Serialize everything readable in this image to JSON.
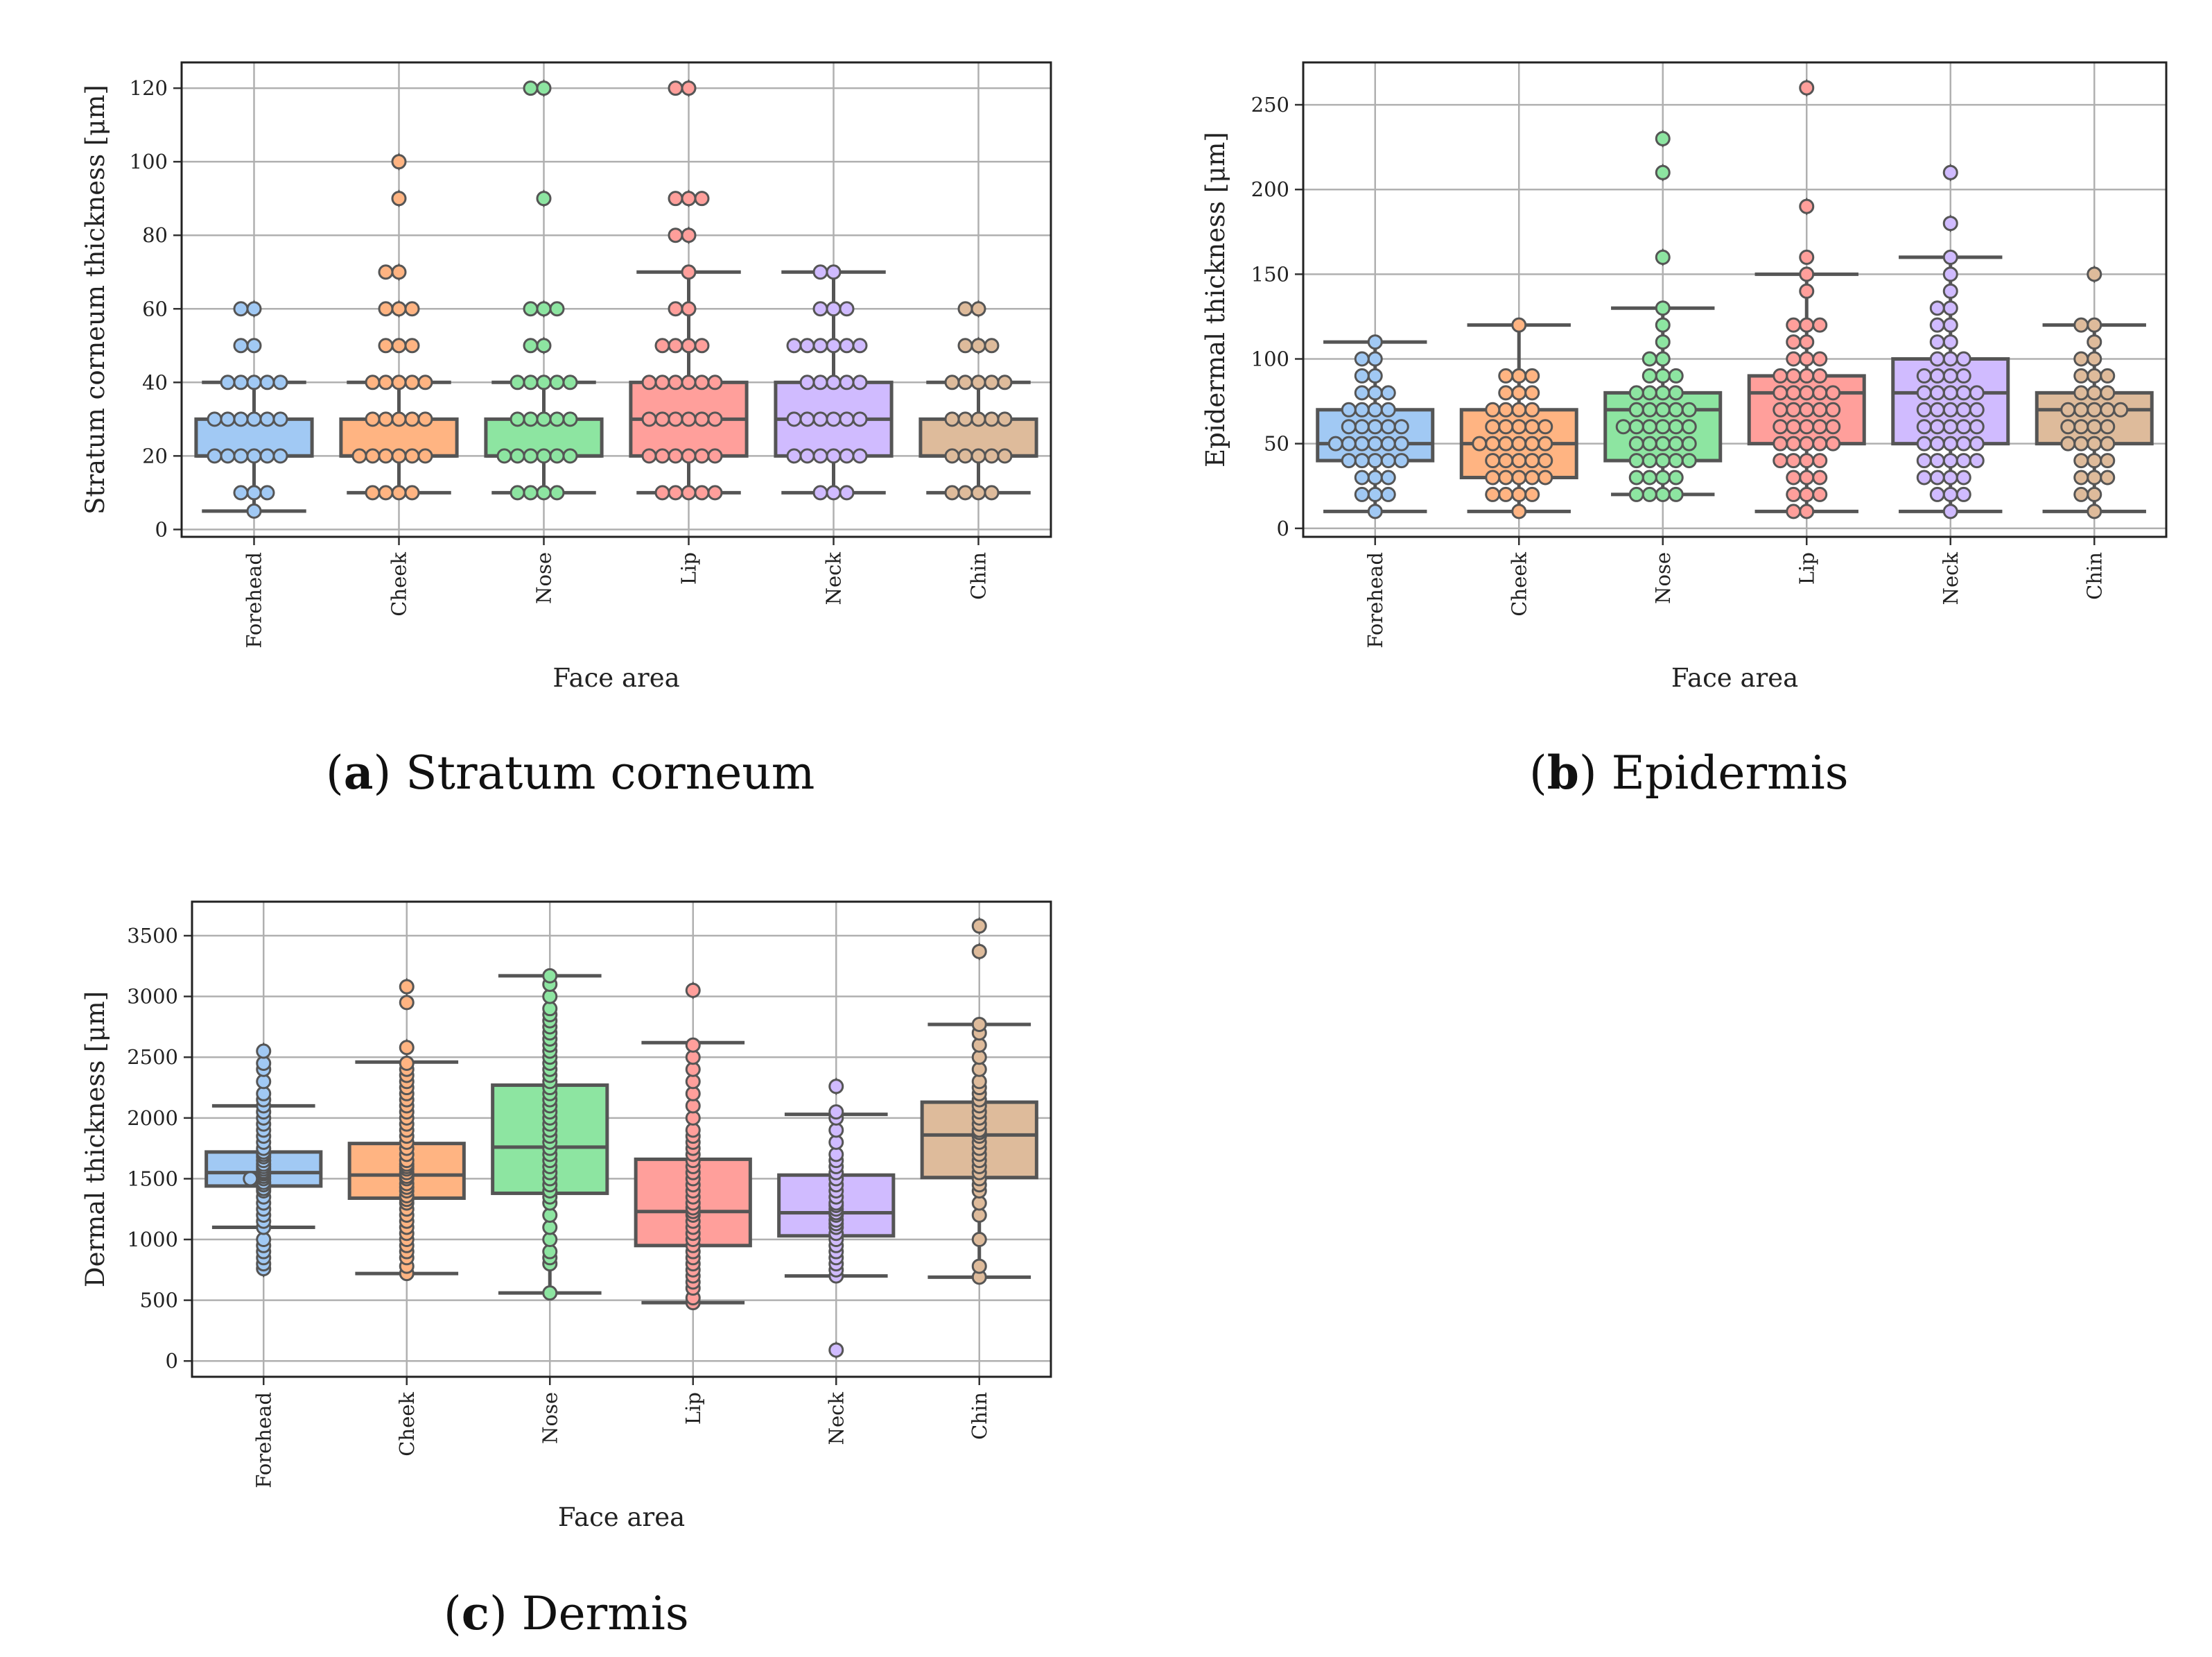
{
  "panels": [
    {
      "id": "a",
      "caption_letter": "a",
      "caption_text": "Stratum corneum",
      "xlabel": "Face area",
      "ylabel": "Stratum corneum thickness [μm]"
    },
    {
      "id": "b",
      "caption_letter": "b",
      "caption_text": "Epidermis",
      "xlabel": "Face area",
      "ylabel": "Epidermal thickness [μm]"
    },
    {
      "id": "c",
      "caption_letter": "c",
      "caption_text": "Dermis",
      "xlabel": "Face area",
      "ylabel": "Dermal thickness [μm]"
    }
  ],
  "colors": {
    "Forehead": "#a1c9f4",
    "Cheek": "#ffb482",
    "Nose": "#8de5a1",
    "Lip": "#ff9f9b",
    "Neck": "#d0bbff",
    "Chin": "#debb9b",
    "edge": "#555555",
    "grid": "#b0b0b0"
  },
  "chart_data": [
    {
      "type": "box",
      "title": "Stratum corneum",
      "xlabel": "Face area",
      "ylabel": "Stratum corneum thickness [μm]",
      "categories": [
        "Forehead",
        "Cheek",
        "Nose",
        "Lip",
        "Neck",
        "Chin"
      ],
      "ylim": [
        -2,
        127
      ],
      "yticks": [
        0,
        20,
        40,
        60,
        80,
        100,
        120
      ],
      "grid": true,
      "boxes": [
        {
          "name": "Forehead",
          "whislo": 5,
          "q1": 20,
          "median": 20,
          "q3": 30,
          "whishi": 40,
          "fliers": [
            60
          ]
        },
        {
          "name": "Cheek",
          "whislo": 10,
          "q1": 20,
          "median": 20,
          "q3": 30,
          "whishi": 40,
          "fliers": [
            60,
            70,
            90,
            100
          ]
        },
        {
          "name": "Nose",
          "whislo": 10,
          "q1": 20,
          "median": 20,
          "q3": 30,
          "whishi": 40,
          "fliers": [
            50,
            60,
            90,
            120
          ]
        },
        {
          "name": "Lip",
          "whislo": 10,
          "q1": 20,
          "median": 30,
          "q3": 40,
          "whishi": 70,
          "fliers": [
            80,
            90,
            120
          ]
        },
        {
          "name": "Neck",
          "whislo": 10,
          "q1": 20,
          "median": 30,
          "q3": 40,
          "whishi": 70,
          "fliers": []
        },
        {
          "name": "Chin",
          "whislo": 10,
          "q1": 20,
          "median": 20,
          "q3": 30,
          "whishi": 40,
          "fliers": [
            50,
            60
          ]
        }
      ],
      "points": {
        "Forehead": [
          5,
          10,
          10,
          10,
          20,
          20,
          20,
          20,
          20,
          20,
          30,
          30,
          30,
          30,
          30,
          30,
          40,
          40,
          40,
          40,
          40,
          50,
          50,
          60,
          60
        ],
        "Cheek": [
          10,
          10,
          10,
          10,
          20,
          20,
          20,
          20,
          20,
          20,
          30,
          30,
          30,
          30,
          30,
          40,
          40,
          40,
          40,
          40,
          50,
          50,
          50,
          60,
          60,
          60,
          70,
          70,
          90,
          100
        ],
        "Nose": [
          10,
          10,
          10,
          10,
          20,
          20,
          20,
          20,
          20,
          20,
          30,
          30,
          30,
          30,
          30,
          40,
          40,
          40,
          40,
          40,
          50,
          50,
          60,
          60,
          60,
          90,
          120,
          120
        ],
        "Lip": [
          10,
          10,
          10,
          10,
          10,
          20,
          20,
          20,
          20,
          20,
          20,
          30,
          30,
          30,
          30,
          30,
          30,
          40,
          40,
          40,
          40,
          40,
          40,
          50,
          50,
          50,
          50,
          60,
          60,
          70,
          80,
          80,
          90,
          90,
          90,
          120,
          120
        ],
        "Neck": [
          10,
          10,
          10,
          20,
          20,
          20,
          20,
          20,
          20,
          30,
          30,
          30,
          30,
          30,
          30,
          40,
          40,
          40,
          40,
          40,
          50,
          50,
          50,
          50,
          50,
          50,
          60,
          60,
          60,
          70,
          70
        ],
        "Chin": [
          10,
          10,
          10,
          10,
          20,
          20,
          20,
          20,
          20,
          30,
          30,
          30,
          30,
          30,
          40,
          40,
          40,
          40,
          40,
          50,
          50,
          50,
          60,
          60
        ]
      }
    },
    {
      "type": "box",
      "title": "Epidermis",
      "xlabel": "Face area",
      "ylabel": "Epidermal thickness [μm]",
      "categories": [
        "Forehead",
        "Cheek",
        "Nose",
        "Lip",
        "Neck",
        "Chin"
      ],
      "ylim": [
        -5,
        275
      ],
      "yticks": [
        0,
        50,
        100,
        150,
        200,
        250
      ],
      "grid": true,
      "boxes": [
        {
          "name": "Forehead",
          "whislo": 10,
          "q1": 40,
          "median": 50,
          "q3": 70,
          "whishi": 110,
          "fliers": []
        },
        {
          "name": "Cheek",
          "whislo": 10,
          "q1": 30,
          "median": 50,
          "q3": 70,
          "whishi": 120,
          "fliers": []
        },
        {
          "name": "Nose",
          "whislo": 20,
          "q1": 40,
          "median": 70,
          "q3": 80,
          "whishi": 130,
          "fliers": [
            160,
            210,
            230
          ]
        },
        {
          "name": "Lip",
          "whislo": 10,
          "q1": 50,
          "median": 80,
          "q3": 90,
          "whishi": 150,
          "fliers": [
            190,
            260
          ]
        },
        {
          "name": "Neck",
          "whislo": 10,
          "q1": 50,
          "median": 80,
          "q3": 100,
          "whishi": 160,
          "fliers": [
            180,
            210
          ]
        },
        {
          "name": "Chin",
          "whislo": 10,
          "q1": 50,
          "median": 70,
          "q3": 80,
          "whishi": 120,
          "fliers": [
            150
          ]
        }
      ],
      "points": {
        "Forehead": [
          10,
          20,
          20,
          20,
          30,
          30,
          30,
          40,
          40,
          40,
          40,
          40,
          50,
          50,
          50,
          50,
          50,
          50,
          60,
          60,
          60,
          60,
          60,
          70,
          70,
          70,
          70,
          80,
          80,
          80,
          90,
          90,
          100,
          100,
          110
        ],
        "Cheek": [
          10,
          20,
          20,
          20,
          20,
          30,
          30,
          30,
          30,
          30,
          40,
          40,
          40,
          40,
          40,
          50,
          50,
          50,
          50,
          50,
          50,
          60,
          60,
          60,
          60,
          60,
          70,
          70,
          70,
          70,
          80,
          80,
          80,
          90,
          90,
          90,
          120
        ],
        "Nose": [
          20,
          20,
          20,
          20,
          30,
          30,
          30,
          30,
          40,
          40,
          40,
          40,
          40,
          50,
          50,
          50,
          50,
          50,
          60,
          60,
          60,
          60,
          60,
          60,
          70,
          70,
          70,
          70,
          70,
          80,
          80,
          80,
          80,
          90,
          90,
          90,
          100,
          100,
          110,
          120,
          130,
          160,
          210,
          230
        ],
        "Lip": [
          10,
          10,
          20,
          20,
          20,
          30,
          30,
          30,
          40,
          40,
          40,
          40,
          50,
          50,
          50,
          50,
          50,
          60,
          60,
          60,
          60,
          60,
          70,
          70,
          70,
          70,
          70,
          80,
          80,
          80,
          80,
          80,
          90,
          90,
          90,
          90,
          100,
          100,
          100,
          110,
          110,
          120,
          120,
          120,
          140,
          150,
          160,
          190,
          260
        ],
        "Neck": [
          10,
          20,
          20,
          20,
          30,
          30,
          30,
          30,
          40,
          40,
          40,
          40,
          40,
          50,
          50,
          50,
          50,
          50,
          60,
          60,
          60,
          60,
          60,
          70,
          70,
          70,
          70,
          70,
          80,
          80,
          80,
          80,
          80,
          90,
          90,
          90,
          90,
          100,
          100,
          100,
          110,
          110,
          120,
          120,
          130,
          130,
          140,
          150,
          160,
          180,
          210
        ],
        "Chin": [
          10,
          20,
          20,
          30,
          30,
          30,
          40,
          40,
          40,
          50,
          50,
          50,
          50,
          60,
          60,
          60,
          60,
          70,
          70,
          70,
          70,
          70,
          80,
          80,
          80,
          90,
          90,
          90,
          100,
          100,
          110,
          120,
          120,
          150
        ]
      }
    },
    {
      "type": "box",
      "title": "Dermis",
      "xlabel": "Face area",
      "ylabel": "Dermal thickness [μm]",
      "categories": [
        "Forehead",
        "Cheek",
        "Nose",
        "Lip",
        "Neck",
        "Chin"
      ],
      "ylim": [
        -130,
        3780
      ],
      "yticks": [
        0,
        500,
        1000,
        1500,
        2000,
        2500,
        3000,
        3500
      ],
      "grid": true,
      "boxes": [
        {
          "name": "Forehead",
          "whislo": 1100,
          "q1": 1440,
          "median": 1550,
          "q3": 1720,
          "whishi": 2100,
          "fliers": [
            760,
            850,
            2400,
            2550
          ]
        },
        {
          "name": "Cheek",
          "whislo": 720,
          "q1": 1340,
          "median": 1530,
          "q3": 1790,
          "whishi": 2460,
          "fliers": [
            2580,
            3080
          ]
        },
        {
          "name": "Nose",
          "whislo": 560,
          "q1": 1380,
          "median": 1760,
          "q3": 2270,
          "whishi": 3170,
          "fliers": []
        },
        {
          "name": "Lip",
          "whislo": 480,
          "q1": 950,
          "median": 1230,
          "q3": 1660,
          "whishi": 2620,
          "fliers": [
            3050
          ]
        },
        {
          "name": "Neck",
          "whislo": 700,
          "q1": 1030,
          "median": 1220,
          "q3": 1530,
          "whishi": 2030,
          "fliers": [
            90,
            2260
          ]
        },
        {
          "name": "Chin",
          "whislo": 690,
          "q1": 1510,
          "median": 1860,
          "q3": 2130,
          "whishi": 2770,
          "fliers": [
            3370,
            3580
          ]
        }
      ],
      "points": {
        "Forehead": [
          760,
          800,
          850,
          900,
          950,
          1000,
          1100,
          1150,
          1200,
          1250,
          1300,
          1350,
          1400,
          1420,
          1450,
          1470,
          1500,
          1500,
          1520,
          1540,
          1550,
          1560,
          1580,
          1600,
          1620,
          1650,
          1680,
          1700,
          1720,
          1750,
          1800,
          1850,
          1900,
          1950,
          2000,
          2050,
          2100,
          2150,
          2200,
          2300,
          2400,
          2450,
          2550
        ],
        "Cheek": [
          720,
          780,
          850,
          900,
          950,
          1000,
          1050,
          1100,
          1150,
          1200,
          1250,
          1300,
          1330,
          1360,
          1400,
          1430,
          1460,
          1500,
          1520,
          1550,
          1580,
          1600,
          1620,
          1650,
          1700,
          1750,
          1800,
          1850,
          1900,
          1950,
          2000,
          2050,
          2100,
          2150,
          2200,
          2250,
          2300,
          2350,
          2400,
          2450,
          2580,
          2950,
          3080
        ],
        "Nose": [
          560,
          800,
          850,
          900,
          1000,
          1100,
          1200,
          1300,
          1350,
          1400,
          1450,
          1500,
          1550,
          1600,
          1650,
          1700,
          1750,
          1800,
          1850,
          1900,
          1950,
          2000,
          2050,
          2100,
          2150,
          2200,
          2250,
          2300,
          2350,
          2400,
          2450,
          2500,
          2550,
          2600,
          2650,
          2700,
          2750,
          2800,
          2850,
          2900,
          3000,
          3100,
          3170
        ],
        "Lip": [
          480,
          520,
          600,
          650,
          700,
          750,
          800,
          850,
          900,
          950,
          1000,
          1050,
          1100,
          1150,
          1200,
          1230,
          1260,
          1300,
          1350,
          1400,
          1450,
          1500,
          1550,
          1600,
          1650,
          1700,
          1750,
          1800,
          1850,
          1900,
          2000,
          2100,
          2200,
          2300,
          2400,
          2500,
          2600,
          3050
        ],
        "Neck": [
          90,
          700,
          750,
          800,
          850,
          900,
          950,
          1000,
          1050,
          1100,
          1130,
          1160,
          1200,
          1220,
          1250,
          1280,
          1300,
          1350,
          1400,
          1450,
          1500,
          1550,
          1600,
          1650,
          1700,
          1800,
          1900,
          2000,
          2050,
          2260
        ],
        "Chin": [
          690,
          780,
          1000,
          1200,
          1300,
          1400,
          1450,
          1500,
          1550,
          1600,
          1650,
          1700,
          1750,
          1800,
          1850,
          1880,
          1900,
          1950,
          2000,
          2050,
          2100,
          2150,
          2200,
          2250,
          2300,
          2400,
          2500,
          2600,
          2700,
          2770,
          3370,
          3580
        ]
      }
    }
  ]
}
